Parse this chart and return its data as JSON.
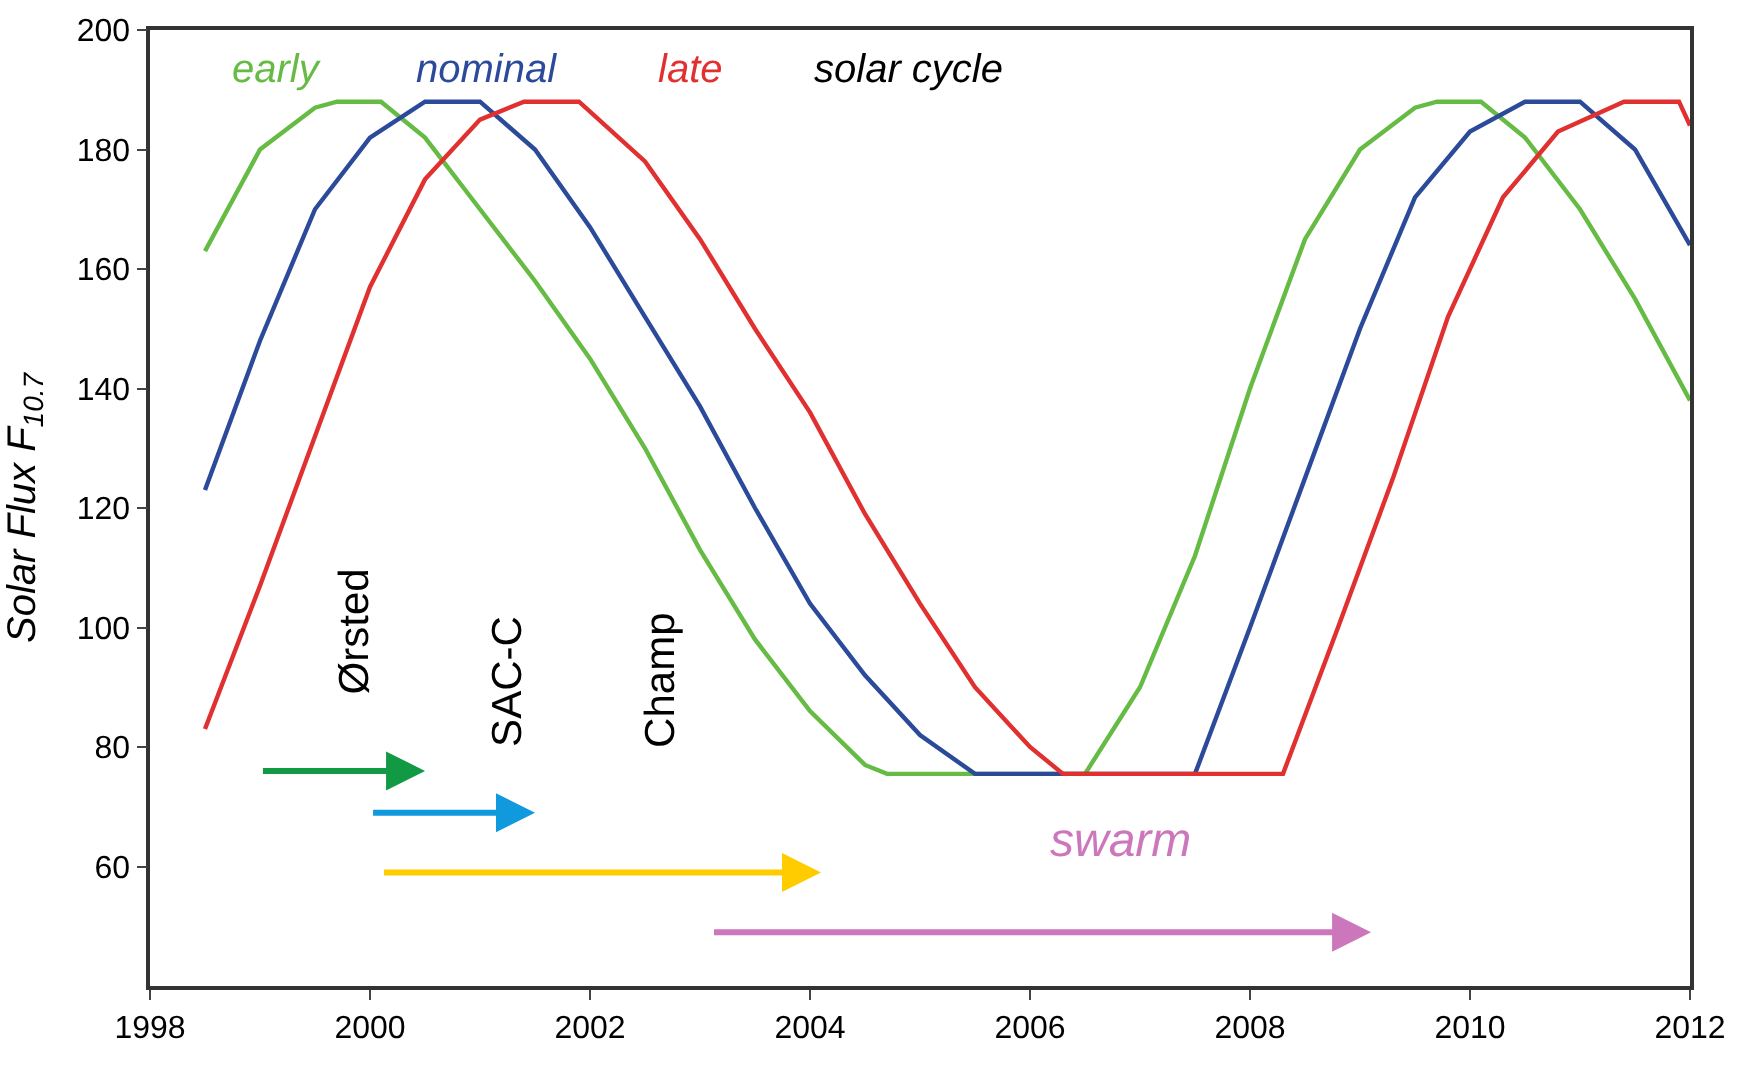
{
  "chart_data": {
    "type": "line",
    "ylabel": "Solar Flux F$_{10.7}$",
    "xlim": [
      1998,
      2012
    ],
    "xticks": [
      1998,
      2000,
      2002,
      2004,
      2006,
      2008,
      2010,
      2012
    ],
    "ylim": [
      40,
      200
    ],
    "yticks": [
      60,
      80,
      100,
      120,
      140,
      160,
      180,
      200
    ],
    "legend": false,
    "marker": "none",
    "line_style": "solid",
    "annotations": [
      "Ørsted",
      "SAC-C",
      "Champ",
      "swarm",
      "solar cycle"
    ],
    "series": [
      {
        "name": "early",
        "color": "#66bb44",
        "x": [
          1998.5,
          1999,
          1999.5,
          1999.7,
          2000.1,
          2000.5,
          2001,
          2001.5,
          2002,
          2002.5,
          2003,
          2003.5,
          2004,
          2004.5,
          2004.7,
          2006.5,
          2007,
          2007.5,
          2008,
          2008.5,
          2009,
          2009.5,
          2009.7,
          2010.1,
          2010.5,
          2011,
          2011.5,
          2012
        ],
        "values": [
          163,
          180,
          187,
          188,
          188,
          182,
          170,
          158,
          145,
          130,
          113,
          98,
          86,
          77,
          75.5,
          75.5,
          90,
          112,
          140,
          165,
          180,
          187,
          188,
          188,
          182,
          170,
          155,
          138
        ]
      },
      {
        "name": "nominal",
        "color": "#2b4a9a",
        "x": [
          1998.5,
          1999,
          1999.5,
          2000,
          2000.5,
          2001,
          2001.5,
          2002,
          2002.5,
          2003,
          2003.5,
          2004,
          2004.5,
          2005,
          2005.5,
          2007.5,
          2008,
          2008.5,
          2009,
          2009.5,
          2010,
          2010.5,
          2011,
          2011.5,
          2012
        ],
        "values": [
          123,
          148,
          170,
          182,
          188,
          188,
          180,
          167,
          152,
          137,
          120,
          104,
          92,
          82,
          75.5,
          75.5,
          100,
          125,
          150,
          172,
          183,
          188,
          188,
          180,
          164
        ]
      },
      {
        "name": "late",
        "color": "#e03030",
        "x": [
          1998.5,
          1999,
          1999.5,
          2000,
          2000.5,
          2001,
          2001.4,
          2001.9,
          2002.5,
          2003,
          2003.5,
          2004,
          2004.5,
          2005,
          2005.5,
          2006,
          2006.3,
          2008.3,
          2008.8,
          2009.3,
          2009.8,
          2010.3,
          2010.8,
          2011.4,
          2011.9,
          2012
        ],
        "values": [
          83,
          107,
          132,
          157,
          175,
          185,
          188,
          188,
          178,
          165,
          150,
          136,
          119,
          104,
          90,
          80,
          75.5,
          75.5,
          100,
          125,
          152,
          172,
          183,
          188,
          188,
          184
        ]
      }
    ]
  }
}
